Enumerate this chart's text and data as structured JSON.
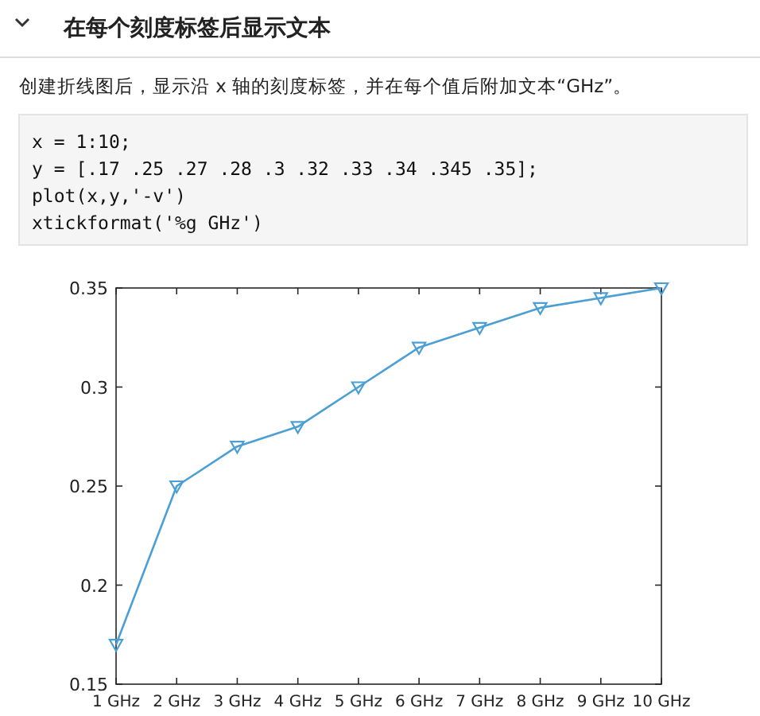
{
  "chart_data": {
    "type": "line",
    "title": "在每个刻度标签后显示文本",
    "subtitle": "创建折线图后，显示沿 x 轴的刻度标签，并在每个值后附加文本“GHz”。",
    "annotations": [
      "x = 1:10;",
      "y = [.17 .25 .27 .28 .3 .32 .33 .34 .345 .35];",
      "plot(x,y,'-v')",
      "xtickformat('%g GHz')"
    ],
    "categories": [
      "1 GHz",
      "2 GHz",
      "3 GHz",
      "4 GHz",
      "5 GHz",
      "6 GHz",
      "7 GHz",
      "8 GHz",
      "9 GHz",
      "10 GHz"
    ],
    "values": [
      0.17,
      0.25,
      0.27,
      0.28,
      0.3,
      0.32,
      0.33,
      0.34,
      0.345,
      0.35
    ],
    "color": "#4b9fd5",
    "ylim": [
      0.15,
      0.35
    ],
    "yticks": [
      0.15,
      0.2,
      0.25,
      0.3,
      0.35
    ],
    "marker": "triangle",
    "line_style": "solid",
    "grid": false
  }
}
